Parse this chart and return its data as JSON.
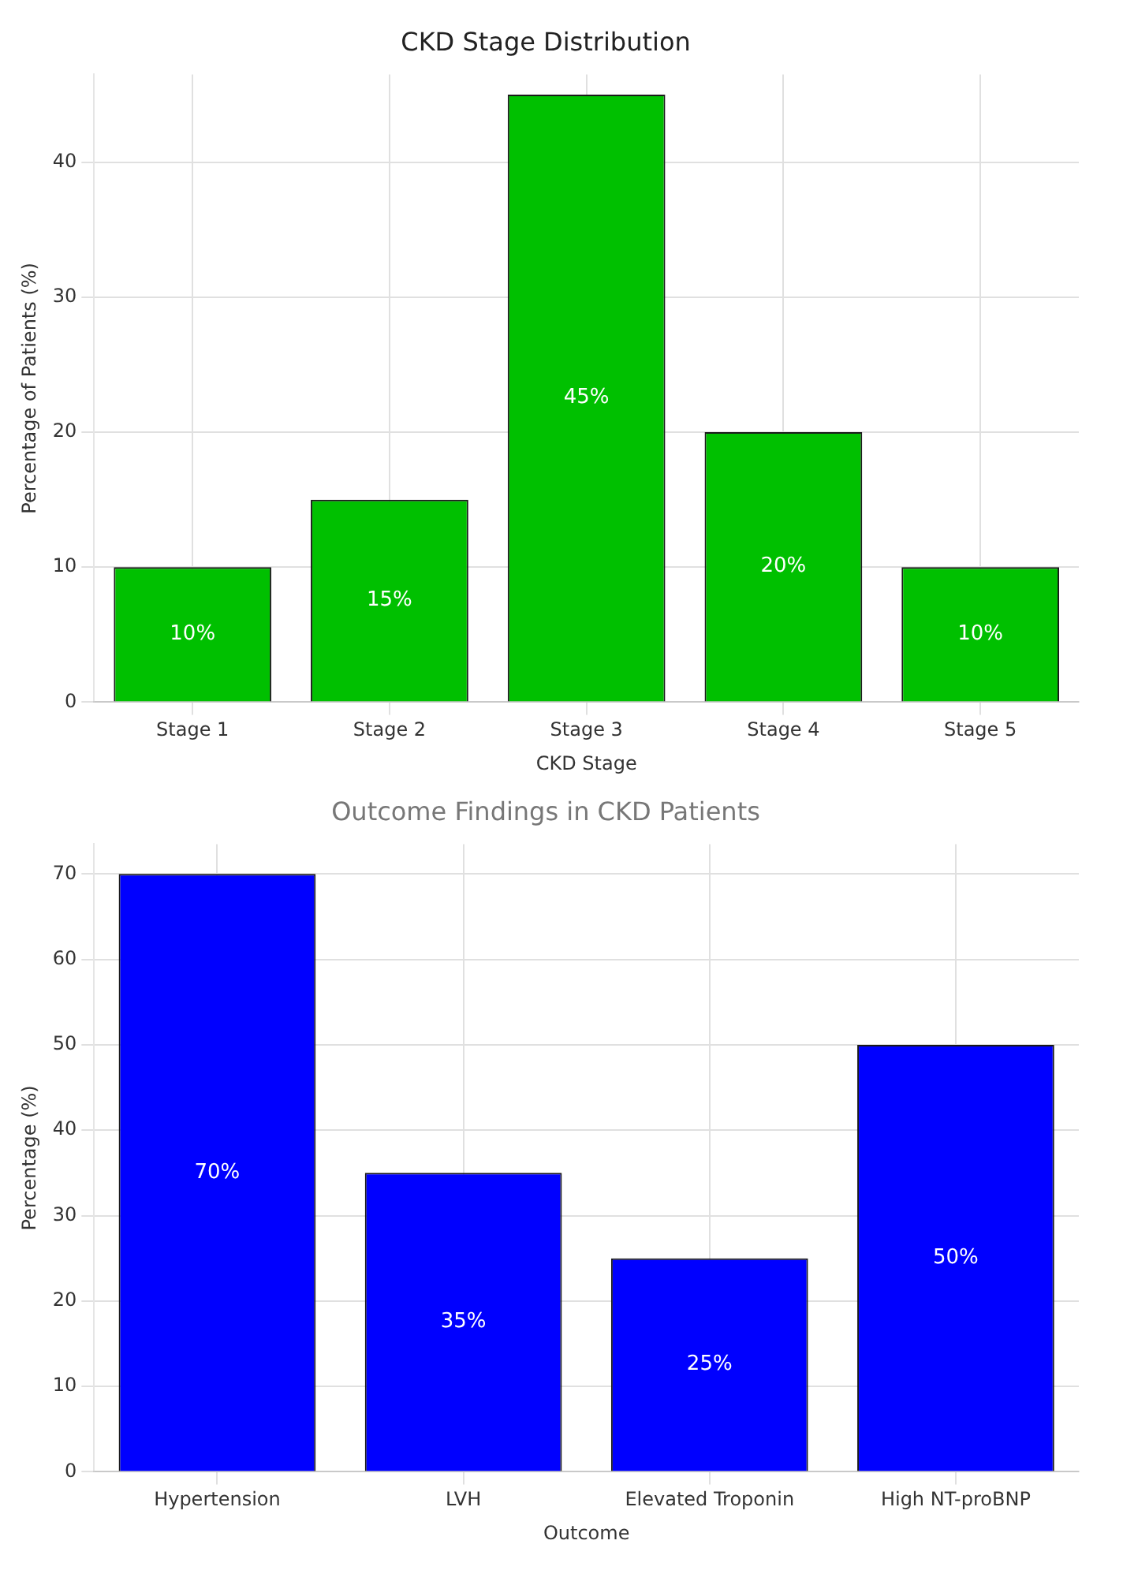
{
  "chart_data": [
    {
      "type": "bar",
      "title": "CKD Stage Distribution",
      "xlabel": "CKD Stage",
      "ylabel": "Percentage of Patients (%)",
      "categories": [
        "Stage 1",
        "Stage 2",
        "Stage 3",
        "Stage 4",
        "Stage 5"
      ],
      "values": [
        10,
        15,
        45,
        20,
        10
      ],
      "value_labels": [
        "10%",
        "15%",
        "45%",
        "20%",
        "10%"
      ],
      "color": "#00c000",
      "ylim": [
        0,
        46.5
      ],
      "yticks": [
        0,
        10,
        20,
        30,
        40
      ],
      "grid": true
    },
    {
      "type": "bar",
      "title": "Outcome Findings in CKD Patients",
      "xlabel": "Outcome",
      "ylabel": "Percentage (%)",
      "categories": [
        "Hypertension",
        "LVH",
        "Elevated Troponin",
        "High NT-proBNP"
      ],
      "values": [
        70,
        35,
        25,
        50
      ],
      "value_labels": [
        "70%",
        "35%",
        "25%",
        "50%"
      ],
      "color": "#0000ff",
      "ylim": [
        0,
        73.5
      ],
      "yticks": [
        0,
        10,
        20,
        30,
        40,
        50,
        60,
        70
      ],
      "grid": true
    }
  ]
}
